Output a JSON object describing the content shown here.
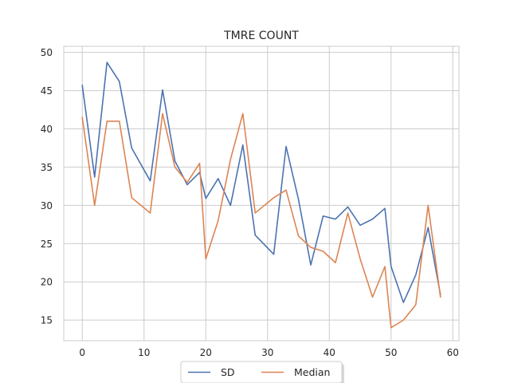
{
  "chart_data": {
    "type": "line",
    "title": "TMRE COUNT",
    "xlabel": "",
    "ylabel": "",
    "xlim": [
      -3,
      61
    ],
    "ylim": [
      12.3,
      50.8
    ],
    "xticks": [
      0,
      10,
      20,
      30,
      40,
      50,
      60
    ],
    "yticks": [
      15,
      20,
      25,
      30,
      35,
      40,
      45,
      50
    ],
    "grid": true,
    "legend_position": "bottom-center",
    "series": [
      {
        "name": "SD",
        "color": "#4c72b0",
        "x": [
          0,
          2,
          4,
          6,
          8,
          11,
          13,
          15,
          17,
          19,
          20,
          22,
          24,
          26,
          28,
          31,
          33,
          35,
          37,
          39,
          41,
          43,
          45,
          47,
          49,
          50,
          52,
          54,
          56,
          58
        ],
        "y": [
          45.7,
          33.7,
          48.7,
          46.2,
          37.5,
          33.2,
          45.1,
          35.8,
          32.7,
          34.3,
          30.9,
          33.5,
          30.0,
          37.9,
          26.1,
          23.6,
          37.7,
          30.8,
          22.2,
          28.6,
          28.2,
          29.8,
          27.4,
          28.2,
          29.6,
          22.0,
          17.3,
          20.9,
          27.1,
          18.3
        ]
      },
      {
        "name": "Median",
        "color": "#dd8452",
        "x": [
          0,
          2,
          4,
          6,
          8,
          11,
          13,
          15,
          17,
          19,
          20,
          22,
          24,
          26,
          28,
          31,
          33,
          35,
          37,
          39,
          41,
          43,
          45,
          47,
          49,
          50,
          52,
          54,
          56,
          58
        ],
        "y": [
          41.5,
          30.0,
          41.0,
          41.0,
          31.0,
          29.0,
          42.0,
          35.0,
          33.0,
          35.5,
          23.0,
          28.0,
          36.0,
          42.0,
          29.0,
          31.0,
          32.0,
          26.0,
          24.5,
          24.0,
          22.5,
          29.0,
          23.0,
          18.0,
          22.0,
          14.0,
          15.0,
          17.0,
          30.0,
          18.0
        ]
      }
    ]
  }
}
